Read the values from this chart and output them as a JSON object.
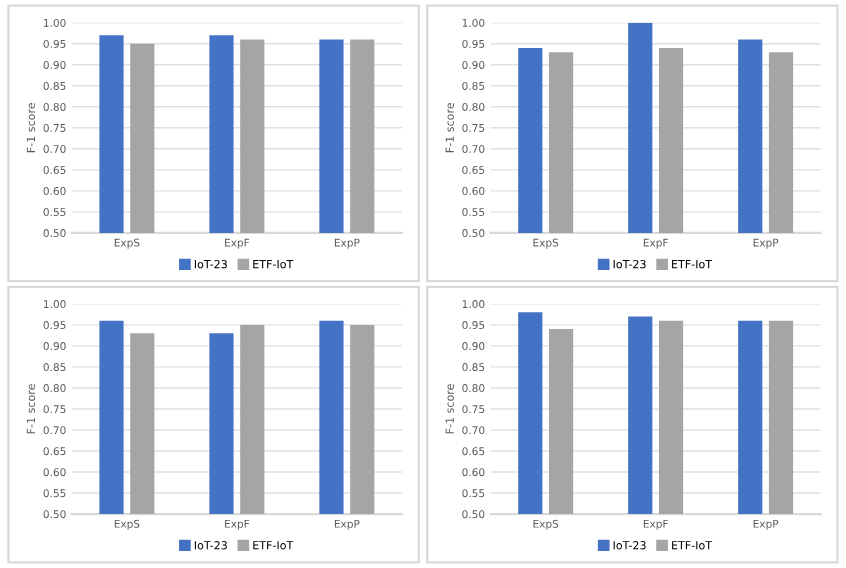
{
  "chart_data": [
    {
      "type": "bar",
      "ylabel": "F-1 score",
      "categories": [
        "ExpS",
        "ExpF",
        "ExpP"
      ],
      "ylim": [
        0.5,
        1.0
      ],
      "yticks": [
        {
          "value": 0.5,
          "label": "0.50"
        },
        {
          "value": 0.55,
          "label": "0.55"
        },
        {
          "value": 0.6,
          "label": "0.60"
        },
        {
          "value": 0.65,
          "label": "0.65"
        },
        {
          "value": 0.7,
          "label": "0.70"
        },
        {
          "value": 0.75,
          "label": "0.75"
        },
        {
          "value": 0.8,
          "label": "0.80"
        },
        {
          "value": 0.85,
          "label": "0.85"
        },
        {
          "value": 0.9,
          "label": "0.90"
        },
        {
          "value": 0.95,
          "label": "0.95"
        },
        {
          "value": 1.0,
          "label": "1.00"
        }
      ],
      "grid": "y",
      "legend": "bottom",
      "series": [
        {
          "name": "IoT-23",
          "color": "#4472c4",
          "values": [
            0.97,
            0.97,
            0.96
          ]
        },
        {
          "name": "ETF-IoT",
          "color": "#a5a5a5",
          "values": [
            0.95,
            0.96,
            0.96
          ]
        }
      ]
    },
    {
      "type": "bar",
      "ylabel": "F-1 score",
      "categories": [
        "ExpS",
        "ExpF",
        "ExpP"
      ],
      "ylim": [
        0.5,
        1.0
      ],
      "yticks": [
        {
          "value": 0.5,
          "label": "0.50"
        },
        {
          "value": 0.55,
          "label": "0.55"
        },
        {
          "value": 0.6,
          "label": "0.60"
        },
        {
          "value": 0.65,
          "label": "0.65"
        },
        {
          "value": 0.7,
          "label": "0.70"
        },
        {
          "value": 0.75,
          "label": "0.75"
        },
        {
          "value": 0.8,
          "label": "0.80"
        },
        {
          "value": 0.85,
          "label": "0.85"
        },
        {
          "value": 0.9,
          "label": "0.90"
        },
        {
          "value": 0.95,
          "label": "0.95"
        },
        {
          "value": 1.0,
          "label": "1.00"
        }
      ],
      "grid": "y",
      "legend": "bottom",
      "series": [
        {
          "name": "IoT-23",
          "color": "#4472c4",
          "values": [
            0.94,
            1.0,
            0.96
          ]
        },
        {
          "name": "ETF-IoT",
          "color": "#a5a5a5",
          "values": [
            0.93,
            0.94,
            0.93
          ]
        }
      ]
    },
    {
      "type": "bar",
      "ylabel": "F-1 score",
      "categories": [
        "ExpS",
        "ExpF",
        "ExpP"
      ],
      "ylim": [
        0.5,
        1.0
      ],
      "yticks": [
        {
          "value": 0.5,
          "label": "0.50"
        },
        {
          "value": 0.55,
          "label": "0.55"
        },
        {
          "value": 0.6,
          "label": "0.60"
        },
        {
          "value": 0.65,
          "label": "0.65"
        },
        {
          "value": 0.7,
          "label": "0.70"
        },
        {
          "value": 0.75,
          "label": "0.75"
        },
        {
          "value": 0.8,
          "label": "0.80"
        },
        {
          "value": 0.85,
          "label": "0.85"
        },
        {
          "value": 0.9,
          "label": "0.90"
        },
        {
          "value": 0.95,
          "label": "0.95"
        },
        {
          "value": 1.0,
          "label": "1.00"
        }
      ],
      "grid": "y",
      "legend": "bottom",
      "series": [
        {
          "name": "IoT-23",
          "color": "#4472c4",
          "values": [
            0.96,
            0.93,
            0.96
          ]
        },
        {
          "name": "ETF-IoT",
          "color": "#a5a5a5",
          "values": [
            0.93,
            0.95,
            0.95
          ]
        }
      ]
    },
    {
      "type": "bar",
      "ylabel": "F-1 score",
      "categories": [
        "ExpS",
        "ExpF",
        "ExpP"
      ],
      "ylim": [
        0.5,
        1.0
      ],
      "yticks": [
        {
          "value": 0.5,
          "label": "0.50"
        },
        {
          "value": 0.55,
          "label": "0.55"
        },
        {
          "value": 0.6,
          "label": "0.60"
        },
        {
          "value": 0.65,
          "label": "0.65"
        },
        {
          "value": 0.7,
          "label": "0.70"
        },
        {
          "value": 0.75,
          "label": "0.75"
        },
        {
          "value": 0.8,
          "label": "0.80"
        },
        {
          "value": 0.85,
          "label": "0.85"
        },
        {
          "value": 0.9,
          "label": "0.90"
        },
        {
          "value": 0.95,
          "label": "0.95"
        },
        {
          "value": 1.0,
          "label": "1.00"
        }
      ],
      "grid": "y",
      "legend": "bottom",
      "series": [
        {
          "name": "IoT-23",
          "color": "#4472c4",
          "values": [
            0.98,
            0.97,
            0.96
          ]
        },
        {
          "name": "ETF-IoT",
          "color": "#a5a5a5",
          "values": [
            0.94,
            0.96,
            0.96
          ]
        }
      ]
    }
  ]
}
